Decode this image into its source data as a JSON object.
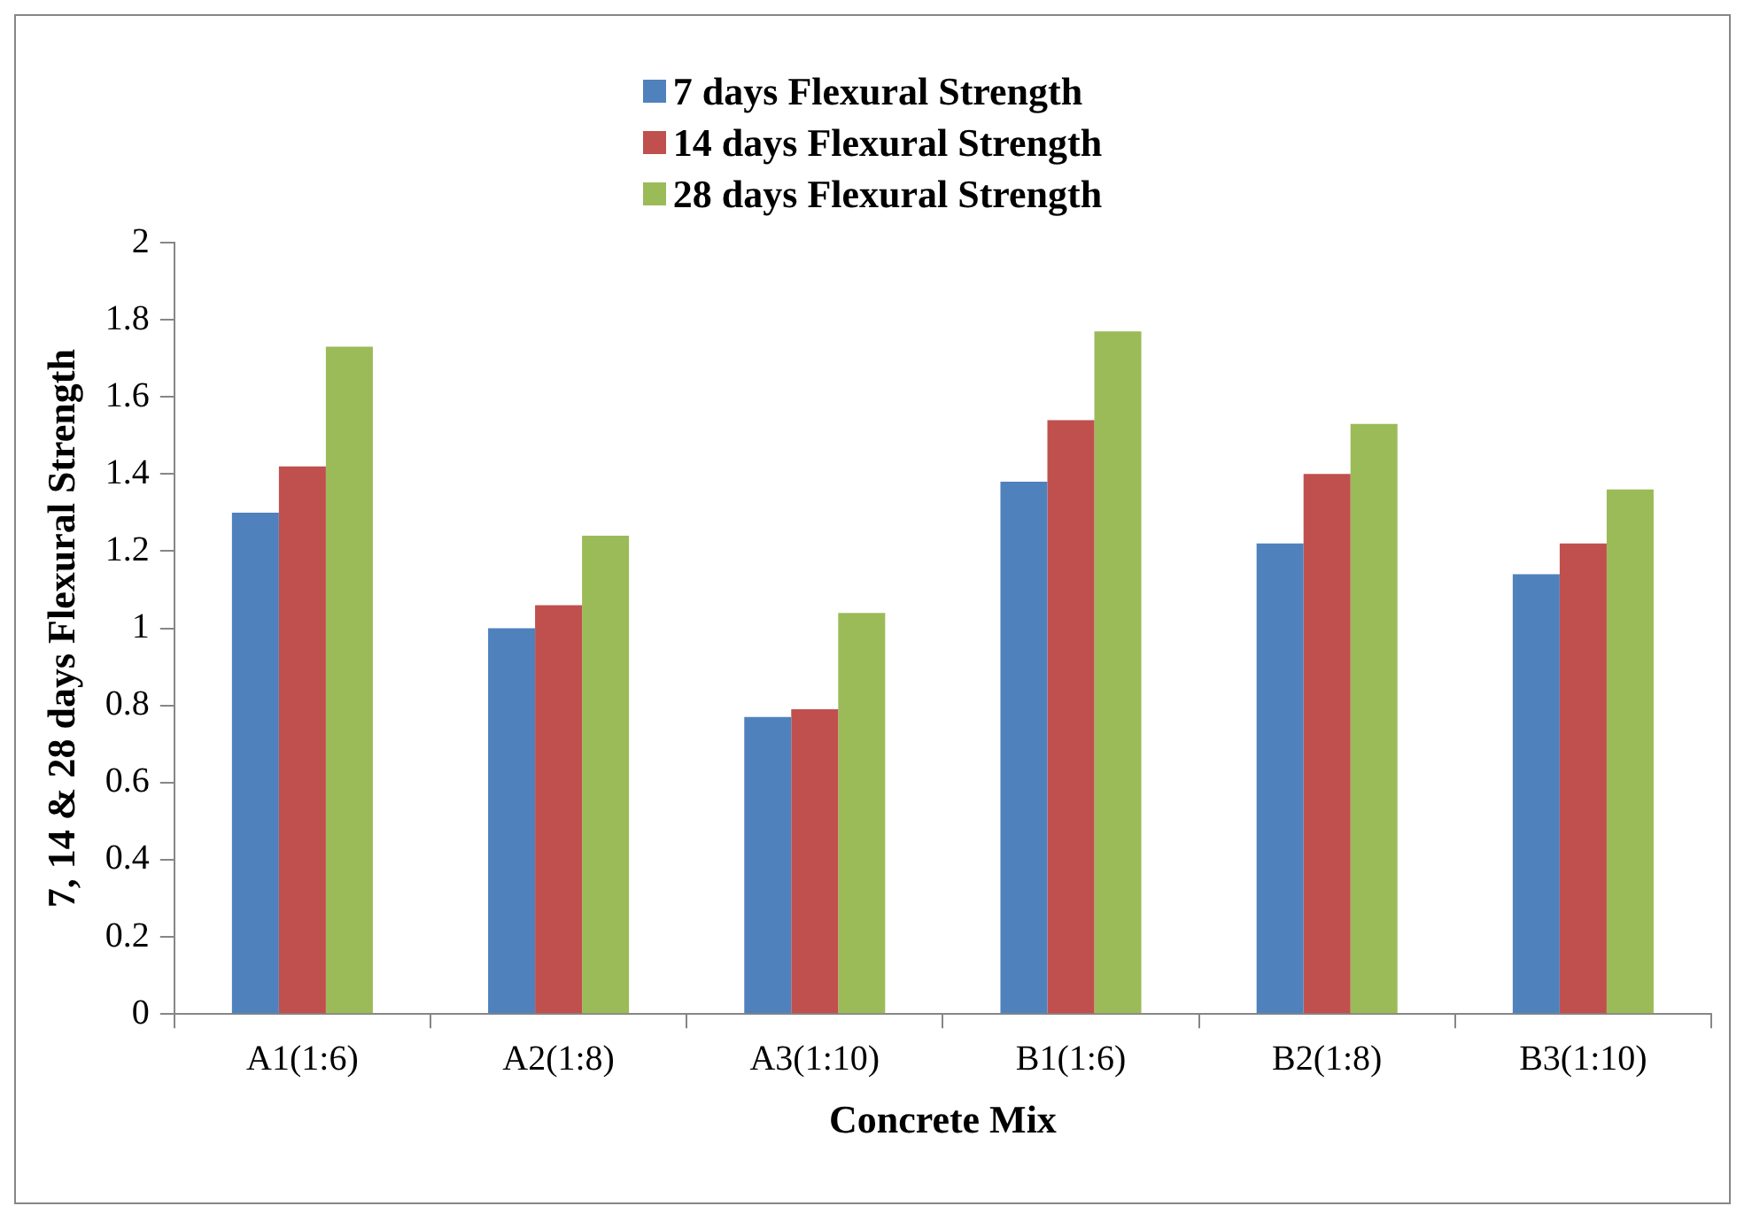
{
  "chart_data": {
    "type": "bar",
    "xlabel": "Concrete Mix",
    "ylabel": "7, 14 & 28 days Flexural Strength",
    "categories": [
      "A1(1:6)",
      "A2(1:8)",
      "A3(1:10)",
      "B1(1:6)",
      "B2(1:8)",
      "B3(1:10)"
    ],
    "series": [
      {
        "name": "7 days Flexural Strength",
        "color": "#4f81bd",
        "values": [
          1.3,
          1.0,
          0.77,
          1.38,
          1.22,
          1.14
        ]
      },
      {
        "name": "14 days Flexural Strength",
        "color": "#c0504d",
        "values": [
          1.42,
          1.06,
          0.79,
          1.54,
          1.4,
          1.22
        ]
      },
      {
        "name": "28 days Flexural Strength",
        "color": "#9bbb59",
        "values": [
          1.73,
          1.24,
          1.04,
          1.77,
          1.53,
          1.36
        ]
      }
    ],
    "ylim": [
      0,
      2
    ],
    "yticks": [
      0,
      0.2,
      0.4,
      0.6,
      0.8,
      1,
      1.2,
      1.4,
      1.6,
      1.8,
      2
    ],
    "grid": false,
    "legend": "top"
  }
}
